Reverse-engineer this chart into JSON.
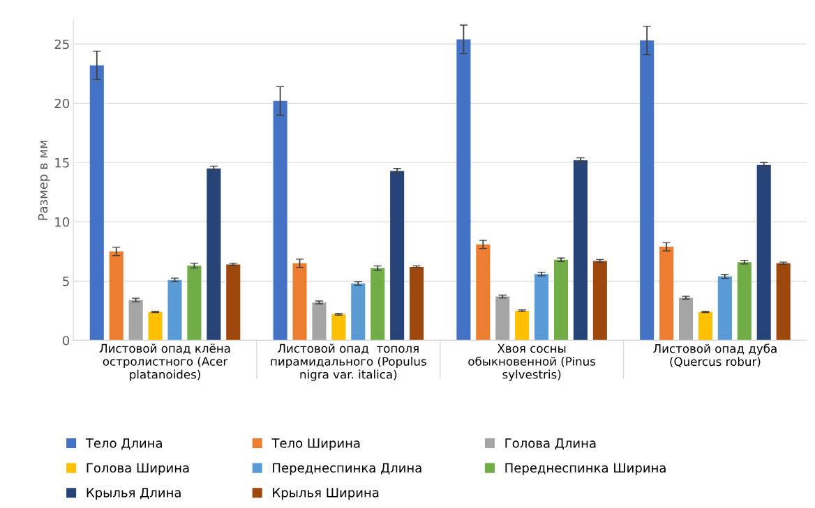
{
  "chart_data": {
    "type": "bar",
    "ylabel": "Размер в мм",
    "categories": [
      "Листовой опад клёна\nостролистного (Acer\nplatanoides)",
      "Листовой опад  тополя\nпирамидального (Populus\nnigra var. italica)",
      "Хвоя сосны\nобыкновенной (Pinus\nsylvestris)",
      "Листовой опад дуба\n(Quercus robur)"
    ],
    "series": [
      {
        "name": "Тело Длина",
        "color": "#4472c4",
        "values": [
          23.2,
          20.2,
          25.4,
          25.3
        ],
        "errors": [
          1.2,
          1.2,
          1.2,
          1.2
        ]
      },
      {
        "name": "Тело Ширина",
        "color": "#ed7d31",
        "values": [
          7.5,
          6.5,
          8.1,
          7.9
        ],
        "errors": [
          0.35,
          0.35,
          0.35,
          0.35
        ]
      },
      {
        "name": "Голова Длина",
        "color": "#a5a5a5",
        "values": [
          3.4,
          3.2,
          3.7,
          3.6
        ],
        "errors": [
          0.15,
          0.12,
          0.12,
          0.12
        ]
      },
      {
        "name": "Голова Ширина",
        "color": "#ffc000",
        "values": [
          2.4,
          2.2,
          2.5,
          2.4
        ],
        "errors": [
          0.05,
          0.07,
          0.07,
          0.05
        ]
      },
      {
        "name": "Переднеспинка Длина",
        "color": "#5b9bd5",
        "values": [
          5.1,
          4.8,
          5.6,
          5.4
        ],
        "errors": [
          0.15,
          0.15,
          0.15,
          0.17
        ]
      },
      {
        "name": "Переднеспинка Ширина",
        "color": "#70ad47",
        "values": [
          6.3,
          6.1,
          6.8,
          6.6
        ],
        "errors": [
          0.2,
          0.18,
          0.15,
          0.15
        ]
      },
      {
        "name": "Крылья Длина",
        "color": "#264478",
        "values": [
          14.5,
          14.3,
          15.2,
          14.8
        ],
        "errors": [
          0.2,
          0.2,
          0.2,
          0.2
        ]
      },
      {
        "name": "Крылья Ширина",
        "color": "#9e480e",
        "values": [
          6.4,
          6.2,
          6.7,
          6.5
        ],
        "errors": [
          0.1,
          0.08,
          0.12,
          0.1
        ]
      }
    ],
    "ylim": [
      0,
      27
    ],
    "yticks": [
      0,
      5,
      10,
      15,
      20,
      25
    ],
    "grid": "y",
    "legend": "bottom"
  }
}
